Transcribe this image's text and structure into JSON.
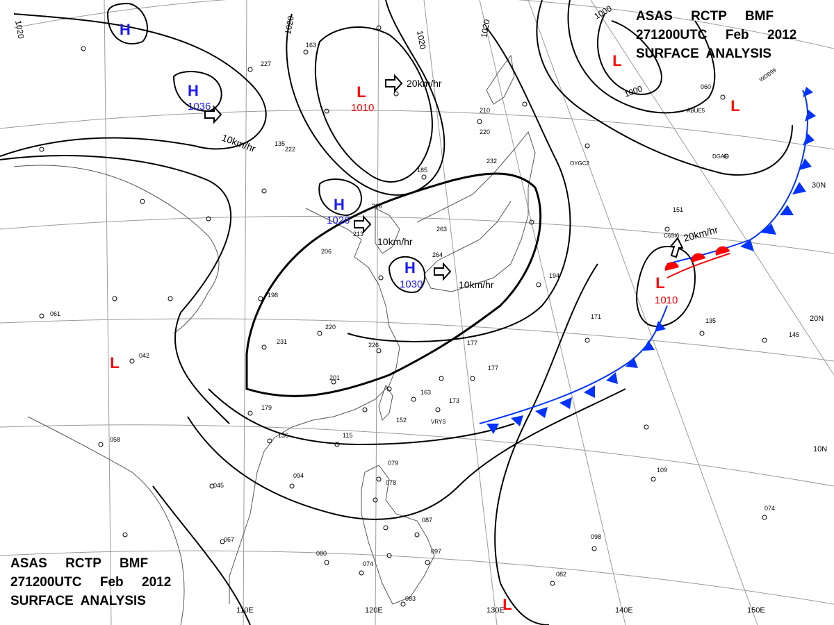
{
  "header": {
    "line1": "ASAS     RCTP     BMF",
    "line2": "271200UTC     Feb     2012",
    "line3": "SURFACE  ANALYSIS"
  },
  "footer": {
    "line1": "ASAS     RCTP     BMF",
    "line2": "271200UTC     Feb     2012",
    "line3": "SURFACE  ANALYSIS"
  },
  "colors": {
    "high": "#1a1aff",
    "low": "#ff0000",
    "cold_front": "#0033ff",
    "warm_front": "#ff0000",
    "isobar": "#000000",
    "grid": "#9a9a9a",
    "coast": "#555555"
  },
  "lon_labels": [
    "110E",
    "120E",
    "130E",
    "140E",
    "150E"
  ],
  "lat_labels": [
    "30N",
    "20N",
    "10N"
  ],
  "isobar_labels": [
    "1020",
    "1020",
    "1020",
    "1020",
    "1000",
    "1000"
  ],
  "pressure_systems": [
    {
      "type": "H",
      "value": ""
    },
    {
      "type": "H",
      "value": "1036"
    },
    {
      "type": "L",
      "value": "1010"
    },
    {
      "type": "H",
      "value": "1026"
    },
    {
      "type": "H",
      "value": "1030"
    },
    {
      "type": "L",
      "value": ""
    },
    {
      "type": "L",
      "value": ""
    },
    {
      "type": "L",
      "value": "1010"
    },
    {
      "type": "L",
      "value": ""
    },
    {
      "type": "L",
      "value": ""
    }
  ],
  "motion_labels": [
    "10km/hr",
    "20km/hr",
    "10km/hr",
    "10km/hr",
    "20km/hr"
  ],
  "station_numbers": [
    "227",
    "163",
    "185",
    "210",
    "220",
    "232",
    "135",
    "222",
    "206",
    "213",
    "226",
    "263",
    "264",
    "198",
    "220",
    "231",
    "226",
    "201",
    "179",
    "136",
    "115",
    "094",
    "045",
    "067",
    "080",
    "074",
    "083",
    "079",
    "078",
    "087",
    "097",
    "194",
    "177",
    "177",
    "173",
    "152",
    "163",
    "171",
    "135",
    "145",
    "109",
    "098",
    "082",
    "074",
    "042",
    "058",
    "061",
    "060",
    "151"
  ],
  "station_codes": [
    "WDB99",
    "ABUE5",
    "OYGC2",
    "DGAF",
    "C6SI6",
    "VRYS"
  ]
}
